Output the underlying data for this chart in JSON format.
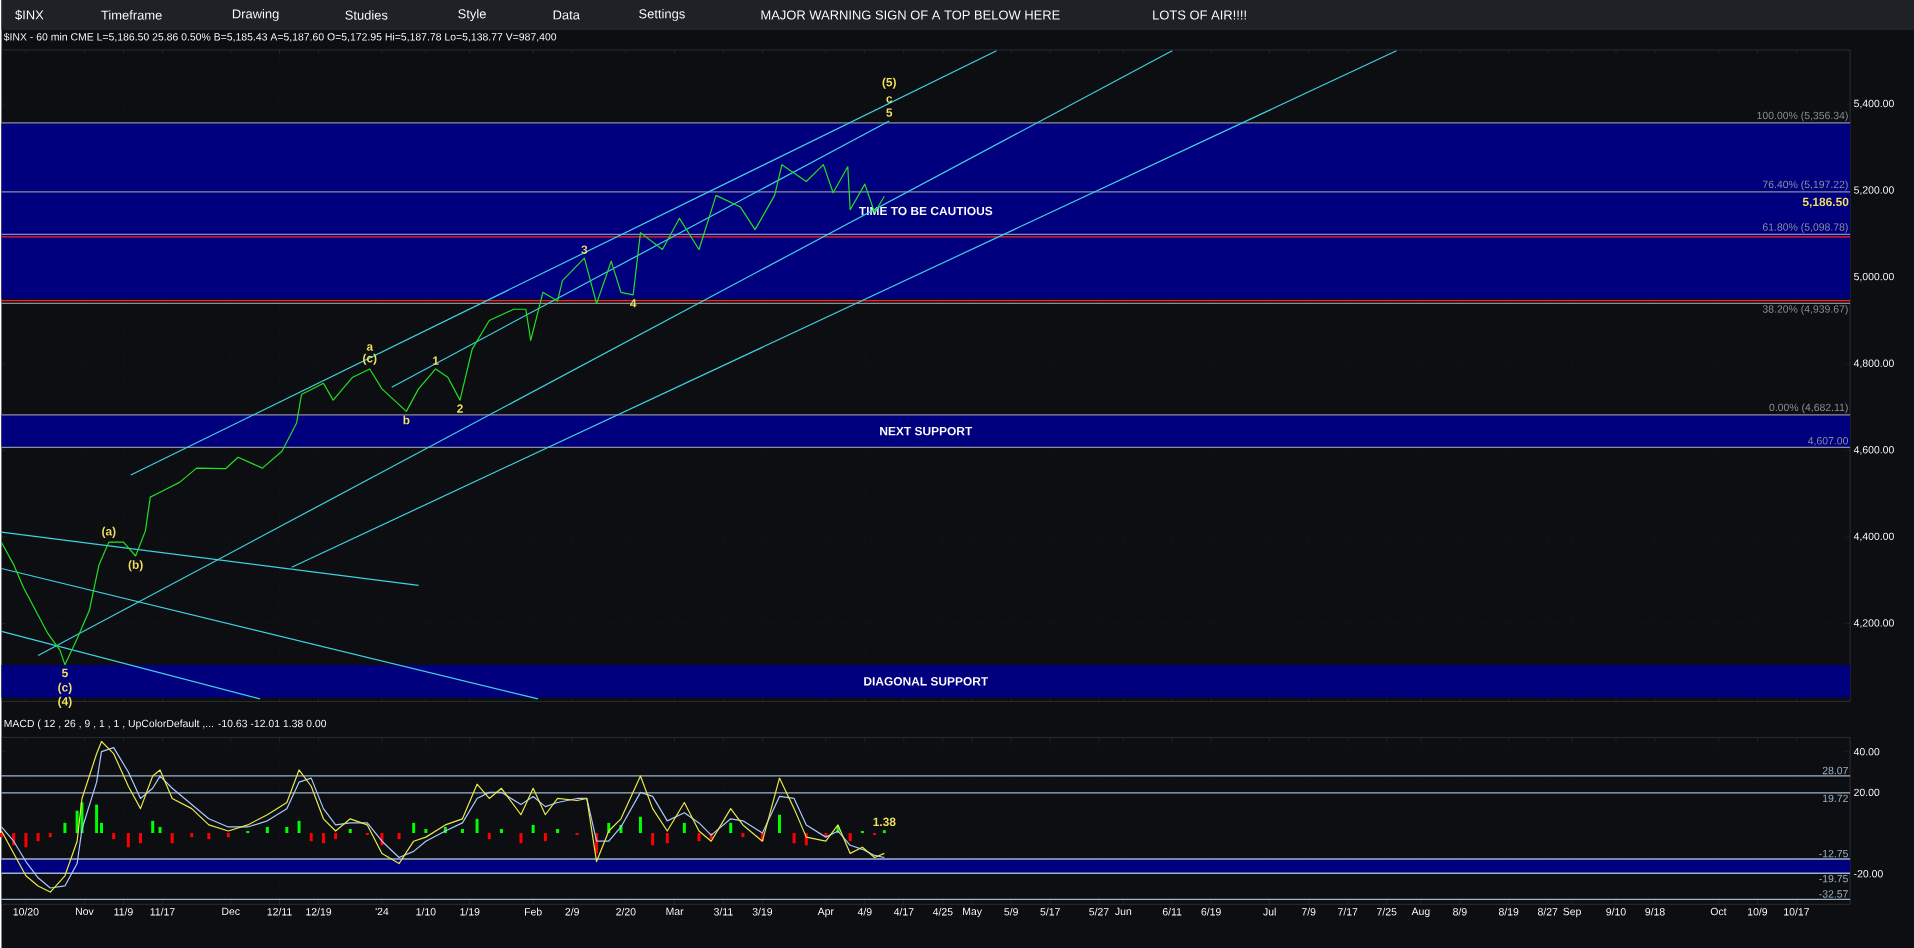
{
  "chart_data": [
    {
      "type": "line",
      "title": "$INX - 60 min CME L=5,186.50 25.86 0.50% B=5,185.43 A=5,187.60 O=5,172.95 Hi=5,187.78 Lo=5,138.77 V=987,400",
      "xlim": [
        "2023-10-15",
        "2024-10-28"
      ],
      "ylim": [
        4020,
        5525
      ],
      "xticks": [
        {
          "value": "2023-10-20",
          "label": null
        },
        {
          "value": "2023-11-01",
          "label": null
        },
        {
          "value": "2023-11-09",
          "label": null
        },
        {
          "value": "2023-11-17",
          "label": null
        },
        {
          "value": "2023-12-01",
          "label": null
        },
        {
          "value": "2023-12-11",
          "label": null
        },
        {
          "value": "2023-12-19",
          "label": null
        },
        {
          "value": "2024-01-01",
          "label": null
        },
        {
          "value": "2024-01-10",
          "label": null
        },
        {
          "value": "2024-01-19",
          "label": null
        },
        {
          "value": "2024-02-01",
          "label": null
        },
        {
          "value": "2024-02-09",
          "label": null
        },
        {
          "value": "2024-02-20",
          "label": null
        },
        {
          "value": "2024-03-01",
          "label": null
        },
        {
          "value": "2024-03-11",
          "label": null
        },
        {
          "value": "2024-03-19",
          "label": null
        },
        {
          "value": "2024-04-01",
          "label": null
        },
        {
          "value": "2024-04-09",
          "label": null
        },
        {
          "value": "2024-04-17",
          "label": null
        },
        {
          "value": "2024-04-25",
          "label": null
        },
        {
          "value": "2024-05-01",
          "label": null
        },
        {
          "value": "2024-05-09",
          "label": null
        },
        {
          "value": "2024-05-17",
          "label": null
        },
        {
          "value": "2024-05-27",
          "label": null
        },
        {
          "value": "2024-06-01",
          "label": null
        },
        {
          "value": "2024-06-11",
          "label": null
        },
        {
          "value": "2024-06-19",
          "label": null
        },
        {
          "value": "2024-07-01",
          "label": null
        },
        {
          "value": "2024-07-09",
          "label": null
        },
        {
          "value": "2024-07-17",
          "label": null
        },
        {
          "value": "2024-07-25",
          "label": null
        },
        {
          "value": "2024-08-01",
          "label": null
        },
        {
          "value": "2024-08-09",
          "label": null
        },
        {
          "value": "2024-08-19",
          "label": null
        },
        {
          "value": "2024-08-27",
          "label": null
        },
        {
          "value": "2024-09-01",
          "label": null
        },
        {
          "value": "2024-09-10",
          "label": null
        },
        {
          "value": "2024-09-18",
          "label": null
        },
        {
          "value": "2024-10-01",
          "label": null
        },
        {
          "value": "2024-10-09",
          "label": null
        },
        {
          "value": "2024-10-17",
          "label": null
        }
      ],
      "yticks": [
        {
          "value": 4200,
          "label": "4,200.00"
        },
        {
          "value": 4400,
          "label": "4,400.00"
        },
        {
          "value": 4600,
          "label": "4,600.00"
        },
        {
          "value": 4800,
          "label": "4,800.00"
        },
        {
          "value": 5000,
          "label": "5,000.00"
        },
        {
          "value": 5200,
          "label": "5,200.00"
        },
        {
          "value": 5400,
          "label": "5,400.00"
        }
      ],
      "tick_labels": "y",
      "grid": true,
      "bands": [
        {
          "axis": "y",
          "from": 4950,
          "to": 5356,
          "color": "#00007f",
          "label": "TIME TO BE CAUTIOUS"
        },
        {
          "axis": "y",
          "from": 4607,
          "to": 4682,
          "color": "#00007f",
          "label": "NEXT SUPPORT"
        },
        {
          "axis": "y",
          "from": 4029,
          "to": 4104,
          "color": "#00007f",
          "label": "DIAGONAL SUPPORT"
        }
      ],
      "ref_lines": [
        {
          "axis": "y",
          "value": 5356.34,
          "label": "100.00% (5,356.34)",
          "color": "#8a8f9a"
        },
        {
          "axis": "y",
          "value": 5197.22,
          "label": "76.40% (5,197.22)",
          "color": "#8a8f9a"
        },
        {
          "axis": "y",
          "value": 5098.78,
          "label": "61.80% (5,098.78)",
          "color": "#8a8f9a"
        },
        {
          "axis": "y",
          "value": 5093,
          "color": "#ff2020"
        },
        {
          "axis": "y",
          "value": 4946,
          "color": "#ff2020"
        },
        {
          "axis": "y",
          "value": 4939.67,
          "label": "38.20% (4,939.67)",
          "color": "#8a8f9a"
        },
        {
          "axis": "y",
          "value": 4682.11,
          "label": "0.00% (4,682.11)",
          "color": "#8a8f9a"
        },
        {
          "axis": "y",
          "value": 4607,
          "label": "4,607.00",
          "color": "#8a8f9a"
        }
      ],
      "series": [
        {
          "color": "#40d0e0",
          "x": [
            "2023-11-10T12:00",
            "2024-05-06"
          ],
          "values": [
            4543,
            5523
          ]
        },
        {
          "color": "#40d0e0",
          "x": [
            "2023-10-22T12:00",
            "2024-06-11"
          ],
          "values": [
            4126,
            5523
          ]
        },
        {
          "color": "#40d0e0",
          "x": [
            "2023-12-13T12:00",
            "2024-07-27"
          ],
          "values": [
            4330,
            5523
          ]
        },
        {
          "color": "#40d0e0",
          "x": [
            "2024-01-03",
            "2024-04-14"
          ],
          "values": [
            4746,
            5361
          ]
        },
        {
          "color": "#40d0e0",
          "x": [
            "2023-10-15",
            "2024-01-08T12:00"
          ],
          "values": [
            4411,
            4288
          ]
        },
        {
          "color": "#40d0e0",
          "x": [
            "2023-10-15",
            "2024-02-02"
          ],
          "values": [
            4327,
            4026
          ]
        },
        {
          "color": "#40d0e0",
          "x": [
            "2023-10-15",
            "2023-12-07"
          ],
          "values": [
            4182,
            4026
          ]
        },
        {
          "color": "#22e022",
          "x": [
            "2023-10-15",
            "2023-10-17T12:00",
            "2023-10-19T12:00",
            "2023-10-22",
            "2023-10-24T12:00",
            "2023-10-27",
            "2023-10-28",
            "2023-10-30T12:00",
            "2023-11-02",
            "2023-11-04",
            "2023-11-06",
            "2023-11-09",
            "2023-11-11T12:00",
            "2023-11-13T12:00",
            "2023-11-14T12:00",
            "2023-11-17",
            "2023-11-20T12:00",
            "2023-11-24",
            "2023-11-30",
            "2023-12-02T12:00",
            "2023-12-07T12:00",
            "2023-12-11T12:00",
            "2023-12-14T12:00",
            "2023-12-15T12:00",
            "2023-12-20",
            "2023-12-22",
            "2023-12-26",
            "2023-12-29T12:00",
            "2024-01-01",
            "2024-01-06",
            "2024-01-08T12:00",
            "2024-01-12",
            "2024-01-14T12:00",
            "2024-01-17",
            "2024-01-19T12:00",
            "2024-01-23",
            "2024-01-28",
            "2024-01-30T12:00",
            "2024-01-31T12:00",
            "2024-02-03",
            "2024-02-06",
            "2024-02-07",
            "2024-02-11T12:00",
            "2024-02-14",
            "2024-02-17",
            "2024-02-19",
            "2024-02-21T12:00",
            "2024-02-23",
            "2024-02-27T12:00",
            "2024-03-02",
            "2024-03-06",
            "2024-03-09T12:00",
            "2024-03-14T12:00",
            "2024-03-17T12:00",
            "2024-03-21T12:00",
            "2024-03-23",
            "2024-03-28",
            "2024-03-31T12:00",
            "2024-04-02T12:00",
            "2024-04-05T12:00",
            "2024-04-06",
            "2024-04-09",
            "2024-04-11",
            "2024-04-13"
          ],
          "values": [
            4387,
            4336,
            4283,
            4230,
            4177,
            4138,
            4105,
            4165,
            4230,
            4336,
            4388,
            4388,
            4356,
            4414,
            4492,
            4506,
            4526,
            4559,
            4558,
            4584,
            4559,
            4598,
            4663,
            4729,
            4755,
            4716,
            4769,
            4788,
            4742,
            4690,
            4742,
            4788,
            4769,
            4716,
            4834,
            4900,
            4926,
            4926,
            4854,
            4965,
            4945,
            4992,
            5044,
            4939,
            5037,
            4965,
            4959,
            5103,
            5064,
            5136,
            5064,
            5189,
            5162,
            5110,
            5189,
            5260,
            5221,
            5260,
            5195,
            5255,
            5156,
            5215,
            5149,
            5187
          ]
        }
      ],
      "annotations": [
        "$INX",
        "Timeframe",
        "Drawing",
        "Studies",
        "Style",
        "Data",
        "Settings",
        "MAJOR WARNING SIGN OF A TOP BELOW HERE",
        "LOTS OF AIR!!!!",
        {
          "text": "5,186.50",
          "x": "2024-10-28",
          "y": 5186.5
        },
        {
          "text": "(c)",
          "x": "2023-12-29T12:00",
          "y": 4788
        },
        {
          "text": "a",
          "x": "2023-12-29T12:00",
          "y": 4788
        },
        {
          "text": "b",
          "x": "2024-01-06",
          "y": 4690
        },
        {
          "text": "1",
          "x": "2024-01-12",
          "y": 4788
        },
        {
          "text": "2",
          "x": "2024-01-17",
          "y": 4716
        },
        {
          "text": "3",
          "x": "2024-02-11T12:00",
          "y": 5044
        },
        {
          "text": "4",
          "x": "2024-02-21T12:00",
          "y": 4959
        },
        {
          "text": "5",
          "x": "2024-04-14",
          "y": 5361
        },
        {
          "text": "c",
          "x": "2024-04-14",
          "y": 5361
        },
        {
          "text": "(5)",
          "x": "2024-04-14",
          "y": 5361
        },
        {
          "text": "(a)",
          "x": "2023-11-06",
          "y": 4388
        },
        {
          "text": "(b)",
          "x": "2023-11-11T12:00",
          "y": 4356
        },
        {
          "text": "5",
          "x": "2023-10-28",
          "y": 4105
        },
        {
          "text": "(c)",
          "x": "2023-10-28",
          "y": 4105
        },
        {
          "text": "(4)",
          "x": "2023-10-28",
          "y": 4105
        }
      ]
    },
    {
      "type": "line",
      "title": "MACD ( 12 , 26 , 9 , 1 , 1 , UpColorDefault ,... -10.63 -12.01 1.38 0.00",
      "xlim": [
        "2023-10-15",
        "2024-10-28"
      ],
      "ylim": [
        -35,
        47
      ],
      "xticks": [
        {
          "value": "2023-10-20",
          "label": "10/20"
        },
        {
          "value": "2023-11-01",
          "label": "Nov"
        },
        {
          "value": "2023-11-09",
          "label": "11/9"
        },
        {
          "value": "2023-11-17",
          "label": "11/17"
        },
        {
          "value": "2023-12-01",
          "label": "Dec"
        },
        {
          "value": "2023-12-11",
          "label": "12/11"
        },
        {
          "value": "2023-12-19",
          "label": "12/19"
        },
        {
          "value": "2024-01-01",
          "label": "'24"
        },
        {
          "value": "2024-01-10",
          "label": "1/10"
        },
        {
          "value": "2024-01-19",
          "label": "1/19"
        },
        {
          "value": "2024-02-01",
          "label": "Feb"
        },
        {
          "value": "2024-02-09",
          "label": "2/9"
        },
        {
          "value": "2024-02-20",
          "label": "2/20"
        },
        {
          "value": "2024-03-01",
          "label": "Mar"
        },
        {
          "value": "2024-03-11",
          "label": "3/11"
        },
        {
          "value": "2024-03-19",
          "label": "3/19"
        },
        {
          "value": "2024-04-01",
          "label": "Apr"
        },
        {
          "value": "2024-04-09",
          "label": "4/9"
        },
        {
          "value": "2024-04-17",
          "label": "4/17"
        },
        {
          "value": "2024-04-25",
          "label": "4/25"
        },
        {
          "value": "2024-05-01",
          "label": "May"
        },
        {
          "value": "2024-05-09",
          "label": "5/9"
        },
        {
          "value": "2024-05-17",
          "label": "5/17"
        },
        {
          "value": "2024-05-27",
          "label": "5/27"
        },
        {
          "value": "2024-06-01",
          "label": "Jun"
        },
        {
          "value": "2024-06-11",
          "label": "6/11"
        },
        {
          "value": "2024-06-19",
          "label": "6/19"
        },
        {
          "value": "2024-07-01",
          "label": "Jul"
        },
        {
          "value": "2024-07-09",
          "label": "7/9"
        },
        {
          "value": "2024-07-17",
          "label": "7/17"
        },
        {
          "value": "2024-07-25",
          "label": "7/25"
        },
        {
          "value": "2024-08-01",
          "label": "Aug"
        },
        {
          "value": "2024-08-09",
          "label": "8/9"
        },
        {
          "value": "2024-08-19",
          "label": "8/19"
        },
        {
          "value": "2024-08-27",
          "label": "8/27"
        },
        {
          "value": "2024-09-01",
          "label": "Sep"
        },
        {
          "value": "2024-09-10",
          "label": "9/10"
        },
        {
          "value": "2024-09-18",
          "label": "9/18"
        },
        {
          "value": "2024-10-01",
          "label": "Oct"
        },
        {
          "value": "2024-10-09",
          "label": "10/9"
        },
        {
          "value": "2024-10-17",
          "label": "10/17"
        }
      ],
      "yticks": [
        {
          "value": -20,
          "label": "-20.00"
        },
        {
          "value": 20,
          "label": "20.00"
        },
        {
          "value": 40,
          "label": "40.00"
        }
      ],
      "grid": true,
      "bands": [
        {
          "axis": "y",
          "from": -19.75,
          "to": -12.75,
          "color": "#00007f"
        }
      ],
      "ref_lines": [
        {
          "axis": "y",
          "value": 28.07,
          "label": "28.07",
          "color": "#9fb4c8"
        },
        {
          "axis": "y",
          "value": 19.72,
          "label": "19.72",
          "color": "#9fb4c8"
        },
        {
          "axis": "y",
          "value": -12.75,
          "label": "-12.75",
          "color": "#9fb4c8"
        },
        {
          "axis": "y",
          "value": -19.75,
          "label": "-19.75",
          "color": "#9fb4c8"
        },
        {
          "axis": "y",
          "value": -32.57,
          "label": "-32.57",
          "color": "#9fb4c8"
        }
      ],
      "x": [
        "2023-10-15",
        "2023-10-17T12:00",
        "2023-10-20",
        "2023-10-22T12:00",
        "2023-10-25",
        "2023-10-28",
        "2023-10-30T12:00",
        "2023-10-31T12:00",
        "2023-11-03T12:00",
        "2023-11-04T12:00",
        "2023-11-07",
        "2023-11-10",
        "2023-11-12T12:00",
        "2023-11-15",
        "2023-11-16T12:00",
        "2023-11-19",
        "2023-11-23",
        "2023-11-26T12:00",
        "2023-11-30T12:00",
        "2023-12-04T12:00",
        "2023-12-08T12:00",
        "2023-12-12T12:00",
        "2023-12-15",
        "2023-12-17T12:00",
        "2023-12-20",
        "2023-12-22T12:00",
        "2023-12-25T12:00",
        "2023-12-29",
        "2024-01-01",
        "2024-01-04T12:00",
        "2024-01-07T12:00",
        "2024-01-10",
        "2024-01-14",
        "2024-01-17T12:00",
        "2024-01-20T12:00",
        "2024-01-23",
        "2024-01-25T12:00",
        "2024-01-29T12:00",
        "2024-02-01",
        "2024-02-03T12:00",
        "2024-02-06",
        "2024-02-10",
        "2024-02-12",
        "2024-02-14",
        "2024-02-16T12:00",
        "2024-02-19",
        "2024-02-23",
        "2024-02-25T12:00",
        "2024-02-28T12:00",
        "2024-03-03",
        "2024-03-06",
        "2024-03-08T12:00",
        "2024-03-12T12:00",
        "2024-03-15",
        "2024-03-19",
        "2024-03-22T12:00",
        "2024-03-25T12:00",
        "2024-03-28",
        "2024-04-01",
        "2024-04-03T12:00",
        "2024-04-06",
        "2024-04-08T12:00",
        "2024-04-11",
        "2024-04-13"
      ],
      "series": [
        {
          "type": "bar",
          "colors": [
            "#ff0000",
            "#ff0000",
            "#ff0000",
            "#ff0000",
            "#ff0000",
            "#00ff00",
            "#00ff00",
            "#00ff00",
            "#00ff00",
            "#00ff00",
            "#ff0000",
            "#ff0000",
            "#ff0000",
            "#00ff00",
            "#00ff00",
            "#ff0000",
            "#ff0000",
            "#ff0000",
            "#ff0000",
            "#00ff00",
            "#00ff00",
            "#00ff00",
            "#00ff00",
            "#ff0000",
            "#ff0000",
            "#ff0000",
            "#00ff00",
            "#ff0000",
            "#ff0000",
            "#ff0000",
            "#00ff00",
            "#00ff00",
            "#00ff00",
            "#00ff00",
            "#00ff00",
            "#ff0000",
            "#00ff00",
            "#ff0000",
            "#00ff00",
            "#ff0000",
            "#00ff00",
            "#ff0000",
            "#00ff00",
            "#ff0000",
            "#00ff00",
            "#00ff00",
            "#00ff00",
            "#ff0000",
            "#ff0000",
            "#00ff00",
            "#ff0000",
            "#ff0000",
            "#00ff00",
            "#ff0000",
            "#ff0000",
            "#00ff00",
            "#ff0000",
            "#ff0000",
            "#ff0000",
            "#00ff00",
            "#ff0000",
            "#00ff00",
            "#ff0000",
            "#00ff00"
          ],
          "values": [
            -2,
            -6,
            -7,
            -4,
            -2,
            5,
            11,
            15,
            14,
            5,
            -3,
            -7,
            -5,
            6,
            3,
            -5,
            -2,
            -3,
            -2,
            1,
            3,
            3,
            6,
            -4,
            -5,
            -3,
            2,
            -1,
            -6,
            -3,
            5,
            2,
            3,
            2,
            7,
            -3,
            2,
            -5,
            4,
            -4,
            2,
            -1,
            0,
            -10,
            5,
            4,
            8,
            -6,
            -5,
            5,
            -4,
            -3,
            5,
            -2,
            -4,
            9,
            -5,
            -6,
            -2,
            3,
            -4,
            1,
            -1,
            1.38
          ]
        },
        {
          "color": "#a8c8ff",
          "values": [
            3,
            -4,
            -14,
            -22,
            -27,
            -26,
            -15,
            2,
            25,
            40,
            42,
            30,
            17,
            22,
            28,
            22,
            14,
            7,
            3,
            3,
            6,
            12,
            25,
            27,
            12,
            4,
            5,
            5,
            -4,
            -12,
            -9,
            -4,
            1,
            5,
            17,
            20,
            20,
            14,
            18,
            13,
            15,
            17,
            17,
            -4,
            -4,
            3,
            20,
            18,
            6,
            10,
            5,
            -1,
            7,
            6,
            0,
            18,
            17,
            4,
            -2,
            1,
            -6,
            -8,
            -11,
            -12
          ]
        },
        {
          "color": "#e8e84a",
          "values": [
            1,
            -10,
            -21,
            -26,
            -29,
            -21,
            -4,
            17,
            39,
            45,
            39,
            23,
            12,
            28,
            31,
            17,
            12,
            4,
            1,
            4,
            9,
            15,
            31,
            23,
            7,
            1,
            7,
            4,
            -10,
            -15,
            -4,
            -2,
            4,
            7,
            24,
            17,
            22,
            9,
            22,
            9,
            17,
            16,
            17,
            -14,
            1,
            7,
            28,
            12,
            1,
            15,
            1,
            -4,
            12,
            4,
            -4,
            27,
            12,
            -2,
            -4,
            4,
            -10,
            -7,
            -12,
            -10
          ]
        }
      ],
      "annotations": [
        {
          "text": "1.38",
          "x": "2024-04-13",
          "y": 1.38
        }
      ]
    }
  ]
}
